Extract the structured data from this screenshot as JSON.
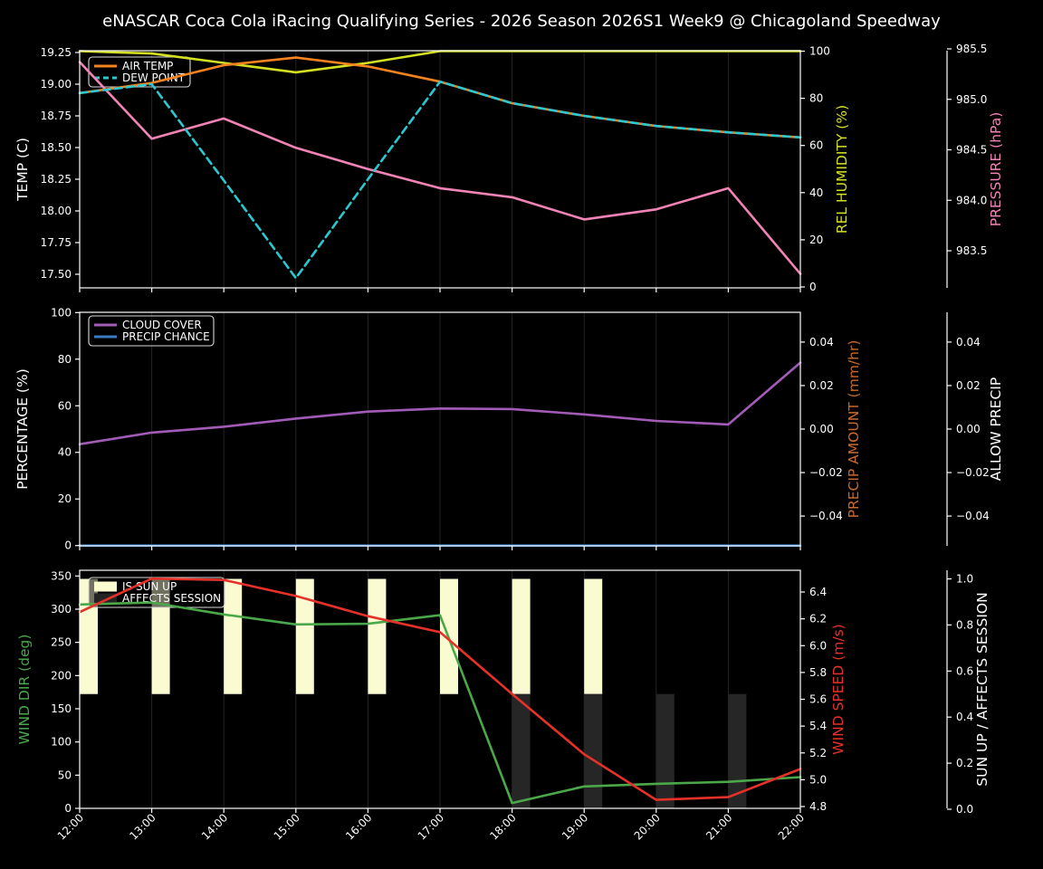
{
  "title": "eNASCAR Coca Cola iRacing Qualifying Series - 2026 Season 2026S1 Week9 @ Chicagoland Speedway",
  "hours": [
    "12:00",
    "13:00",
    "14:00",
    "15:00",
    "16:00",
    "17:00",
    "18:00",
    "19:00",
    "20:00",
    "21:00",
    "22:00"
  ],
  "chart_data": [
    {
      "type": "line",
      "axes": {
        "left": {
          "label": "TEMP (C)",
          "color": "#ffffff",
          "tick_values": [
            17.5,
            17.75,
            18.0,
            18.25,
            18.5,
            18.75,
            19.0,
            19.25
          ],
          "tick_labels": [
            "17.50",
            "17.75",
            "18.00",
            "18.25",
            "18.50",
            "18.75",
            "19.00",
            "19.25"
          ]
        },
        "right1": {
          "label": "REL HUMIDITY (%)",
          "color": "#d4e021",
          "tick_values": [
            0,
            20,
            40,
            60,
            80,
            100
          ],
          "tick_labels": [
            "0",
            "20",
            "40",
            "60",
            "80",
            "100"
          ]
        },
        "right2": {
          "label": "PRESSURE (hPa)",
          "color": "#f283b6",
          "tick_values": [
            983.5,
            984.0,
            984.5,
            985.0,
            985.5
          ],
          "tick_labels": [
            "983.5",
            "984.0",
            "984.5",
            "985.0",
            "985.5"
          ]
        }
      },
      "series": [
        {
          "name": "REL HUMIDITY",
          "axis": "right1",
          "color": "#d4e021",
          "dash": false,
          "values": [
            100,
            99,
            95,
            91,
            95,
            100,
            100,
            100,
            100,
            100,
            100
          ]
        },
        {
          "name": "PRESSURE",
          "axis": "right2",
          "color": "#f283b6",
          "dash": false,
          "values": [
            985.37,
            984.61,
            984.81,
            984.52,
            984.31,
            984.12,
            984.03,
            983.81,
            983.91,
            984.12,
            983.27
          ]
        },
        {
          "name": "AIR TEMP",
          "axis": "left",
          "color": "#f5831f",
          "dash": false,
          "values": [
            18.93,
            19.01,
            19.15,
            19.21,
            19.14,
            19.02,
            18.85,
            18.75,
            18.67,
            18.62,
            18.58
          ]
        },
        {
          "name": "DEW POINT",
          "axis": "left",
          "color": "#2cc8d0",
          "dash": true,
          "values": [
            18.93,
            19.0,
            18.24,
            17.47,
            18.25,
            19.02,
            18.85,
            18.75,
            18.67,
            18.62,
            18.58
          ]
        }
      ],
      "legend": [
        {
          "label": "AIR TEMP",
          "type": "line",
          "color": "#f5831f"
        },
        {
          "label": "DEW POINT",
          "type": "dash",
          "color": "#2cc8d0"
        }
      ],
      "bars": []
    },
    {
      "type": "line",
      "axes": {
        "left": {
          "label": "PERCENTAGE (%)",
          "color": "#ffffff",
          "tick_values": [
            0,
            20,
            40,
            60,
            80,
            100
          ],
          "tick_labels": [
            "0",
            "20",
            "40",
            "60",
            "80",
            "100"
          ]
        },
        "right1": {
          "label": "PRECIP AMOUNT (mm/hr)",
          "color": "#c96a2a",
          "tick_values": [
            -0.04,
            -0.02,
            0.0,
            0.02,
            0.04
          ],
          "tick_labels": [
            "−0.04",
            "−0.02",
            "0.00",
            "0.02",
            "0.04"
          ]
        },
        "right2": {
          "label": "ALLOW PRECIP",
          "color": "#ffffff",
          "tick_values": [
            -0.04,
            -0.02,
            0.0,
            0.02,
            0.04
          ],
          "tick_labels": [
            "−0.04",
            "−0.02",
            "0.00",
            "0.02",
            "0.04"
          ]
        }
      },
      "series": [
        {
          "name": "CLOUD COVER",
          "axis": "left",
          "color": "#a25cb8",
          "dash": false,
          "values": [
            43.5,
            48.5,
            51,
            54.5,
            57.5,
            58.8,
            58.6,
            56.3,
            53.5,
            52,
            78.5
          ]
        },
        {
          "name": "PRECIP CHANCE",
          "axis": "left",
          "color": "#3b7cc0",
          "dash": false,
          "values": [
            0,
            0,
            0,
            0,
            0,
            0,
            0,
            0,
            0,
            0,
            0
          ]
        }
      ],
      "legend": [
        {
          "label": "CLOUD COVER",
          "type": "line",
          "color": "#a25cb8"
        },
        {
          "label": "PRECIP CHANCE",
          "type": "line",
          "color": "#3b7cc0"
        }
      ],
      "bars": []
    },
    {
      "type": "line-bar",
      "axes": {
        "left": {
          "label": "WIND DIR (deg)",
          "color": "#4aa84a",
          "tick_values": [
            0,
            50,
            100,
            150,
            200,
            250,
            300,
            350
          ],
          "tick_labels": [
            "0",
            "50",
            "100",
            "150",
            "200",
            "250",
            "300",
            "350"
          ]
        },
        "right1": {
          "label": "WIND SPEED (m/s)",
          "color": "#e63129",
          "tick_values": [
            4.8,
            5.0,
            5.2,
            5.4,
            5.6,
            5.8,
            6.0,
            6.2,
            6.4
          ],
          "tick_labels": [
            "4.8",
            "5.0",
            "5.2",
            "5.4",
            "5.6",
            "5.8",
            "6.0",
            "6.2",
            "6.4"
          ]
        },
        "right2": {
          "label": "SUN UP / AFFECTS SESSION",
          "color": "#ffffff",
          "tick_values": [
            0.0,
            0.2,
            0.4,
            0.6,
            0.8,
            1.0
          ],
          "tick_labels": [
            "0.0",
            "0.2",
            "0.4",
            "0.6",
            "0.8",
            "1.0"
          ]
        }
      },
      "series": [
        {
          "name": "WIND DIR",
          "axis": "left",
          "color": "#4aa84a",
          "dash": false,
          "values": [
            307,
            310,
            292,
            277,
            278,
            291,
            8,
            33,
            37,
            40,
            47
          ]
        },
        {
          "name": "WIND SPEED",
          "axis": "right1",
          "color": "#e63129",
          "dash": false,
          "values": [
            6.25,
            6.5,
            6.49,
            6.37,
            6.22,
            6.1,
            5.64,
            5.19,
            4.85,
            4.87,
            5.08
          ]
        }
      ],
      "legend": [
        {
          "label": "IS SUN UP",
          "type": "patch",
          "color": "#fbfbd2"
        },
        {
          "label": "AFFECTS SESSION",
          "type": "patch",
          "color": "#242424"
        }
      ],
      "bars": [
        {
          "name": "IS SUN UP",
          "color": "#fbfbd2",
          "span": [
            0.5,
            1.0
          ],
          "values": [
            1,
            1,
            1,
            1,
            1,
            1,
            1,
            1,
            0,
            0,
            0
          ]
        },
        {
          "name": "AFFECTS SESSION",
          "color": "#262626",
          "span": [
            0.0,
            0.5
          ],
          "values": [
            0,
            0,
            0,
            0,
            0,
            0,
            1,
            1,
            1,
            1,
            0
          ]
        }
      ],
      "x_tick_labels": [
        "12:00",
        "13:00",
        "14:00",
        "15:00",
        "16:00",
        "17:00",
        "18:00",
        "19:00",
        "20:00",
        "21:00",
        "22:00"
      ]
    }
  ]
}
